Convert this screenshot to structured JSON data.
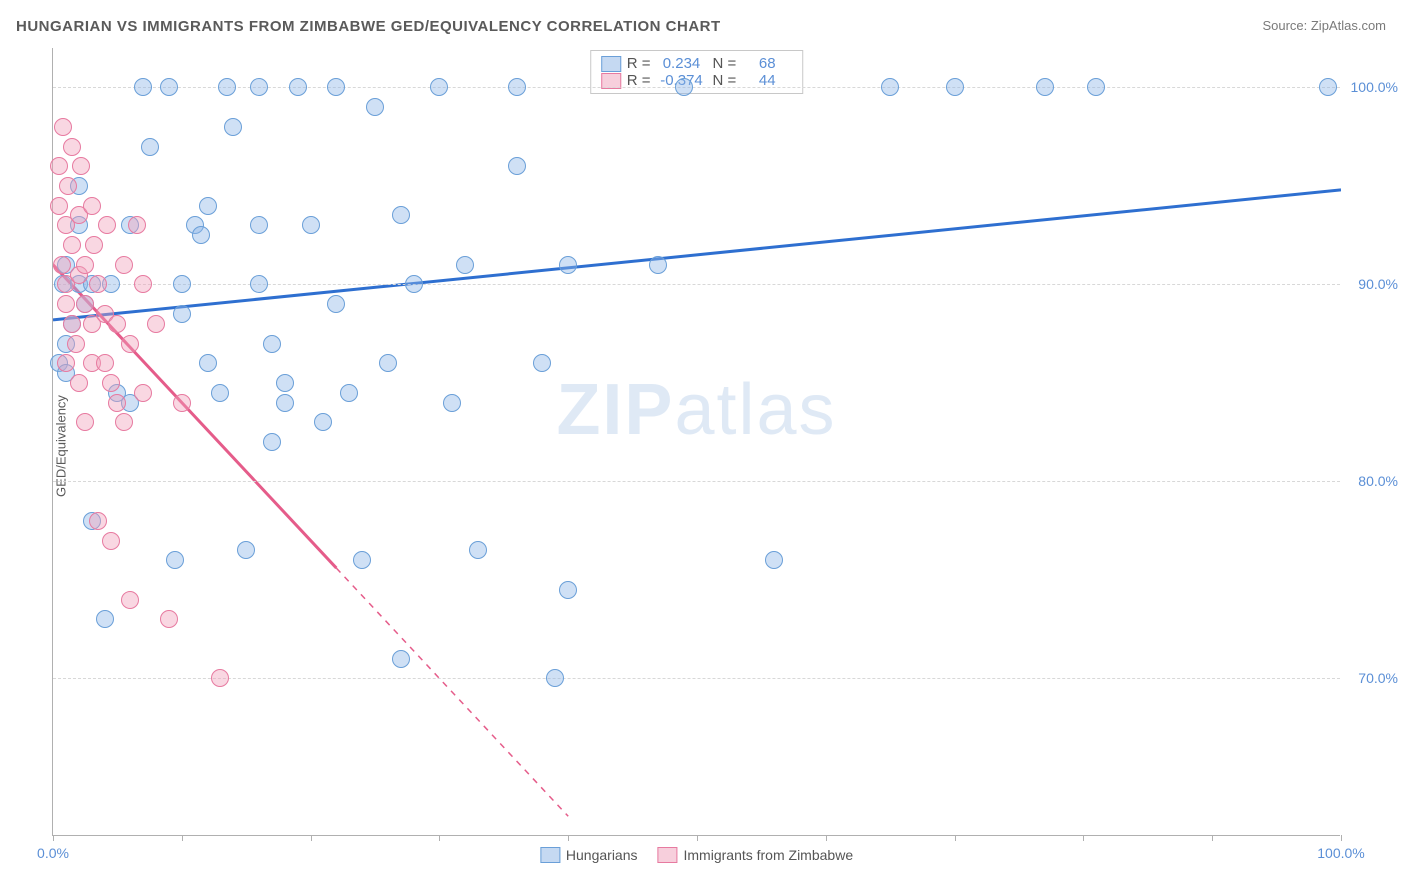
{
  "title": "HUNGARIAN VS IMMIGRANTS FROM ZIMBABWE GED/EQUIVALENCY CORRELATION CHART",
  "source": "Source: ZipAtlas.com",
  "ylabel": "GED/Equivalency",
  "watermark_bold": "ZIP",
  "watermark_light": "atlas",
  "chart": {
    "type": "scatter",
    "xlim": [
      0,
      100
    ],
    "ylim": [
      62,
      102
    ],
    "x_ticks": [
      0,
      10,
      20,
      30,
      40,
      50,
      60,
      70,
      80,
      90,
      100
    ],
    "x_tick_labels": {
      "0": "0.0%",
      "100": "100.0%"
    },
    "y_gridlines": [
      70,
      80,
      90,
      100
    ],
    "y_tick_labels": {
      "70": "70.0%",
      "80": "80.0%",
      "90": "90.0%",
      "100": "100.0%"
    },
    "grid_color": "#d8d8d8",
    "axis_color": "#b0b0b0",
    "tick_label_color": "#5b8fd6",
    "tick_fontsize": 14,
    "background_color": "#ffffff",
    "marker_size": 18,
    "series": [
      {
        "name": "Hungarians",
        "color_fill": "rgba(140,180,230,0.42)",
        "color_stroke": "#6a9fd8",
        "R": "0.234",
        "N": "68",
        "trend": {
          "x1": 0,
          "y1": 88.2,
          "x2": 100,
          "y2": 94.8,
          "color": "#2e6fd0",
          "width": 3,
          "dash": "none"
        },
        "points": [
          [
            0.5,
            86
          ],
          [
            0.8,
            90
          ],
          [
            1,
            91
          ],
          [
            1,
            85.5
          ],
          [
            1,
            87
          ],
          [
            1.5,
            88
          ],
          [
            2,
            95
          ],
          [
            2,
            93
          ],
          [
            2,
            90
          ],
          [
            2.5,
            89
          ],
          [
            3,
            78
          ],
          [
            3,
            90
          ],
          [
            4,
            73
          ],
          [
            4.5,
            90
          ],
          [
            5,
            84.5
          ],
          [
            6,
            93
          ],
          [
            6,
            84
          ],
          [
            7,
            100
          ],
          [
            7.5,
            97
          ],
          [
            9,
            100
          ],
          [
            9.5,
            76
          ],
          [
            10,
            90
          ],
          [
            10,
            88.5
          ],
          [
            11,
            93
          ],
          [
            11.5,
            92.5
          ],
          [
            12,
            94
          ],
          [
            12,
            86
          ],
          [
            13,
            84.5
          ],
          [
            13.5,
            100
          ],
          [
            14,
            98
          ],
          [
            16,
            93
          ],
          [
            16,
            100
          ],
          [
            16,
            90
          ],
          [
            17,
            87
          ],
          [
            17,
            82
          ],
          [
            18,
            84
          ],
          [
            18,
            85
          ],
          [
            19,
            100
          ],
          [
            20,
            93
          ],
          [
            21,
            83
          ],
          [
            22,
            100
          ],
          [
            22,
            89
          ],
          [
            24,
            76
          ],
          [
            25,
            99
          ],
          [
            26,
            86
          ],
          [
            27,
            71
          ],
          [
            27,
            93.5
          ],
          [
            28,
            90
          ],
          [
            30,
            100
          ],
          [
            31,
            84
          ],
          [
            32,
            91
          ],
          [
            33,
            76.5
          ],
          [
            36,
            100
          ],
          [
            36,
            96
          ],
          [
            38,
            86
          ],
          [
            39,
            70
          ],
          [
            40,
            91
          ],
          [
            40,
            74.5
          ],
          [
            47,
            91
          ],
          [
            49,
            100
          ],
          [
            56,
            76
          ],
          [
            65,
            100
          ],
          [
            70,
            100
          ],
          [
            77,
            100
          ],
          [
            81,
            100
          ],
          [
            99,
            100
          ],
          [
            23,
            84.5
          ],
          [
            15,
            76.5
          ]
        ]
      },
      {
        "name": "Immigrants from Zimbabwe",
        "color_fill": "rgba(240,160,185,0.42)",
        "color_stroke": "#e77aa0",
        "R": "-0.374",
        "N": "44",
        "trend": {
          "x1": 0,
          "y1": 91,
          "x2": 40,
          "y2": 63,
          "color": "#e55c8a",
          "width": 3,
          "dash_from_x": 22
        },
        "points": [
          [
            0.5,
            96
          ],
          [
            0.5,
            94
          ],
          [
            0.7,
            91
          ],
          [
            0.8,
            98
          ],
          [
            1,
            93
          ],
          [
            1,
            90
          ],
          [
            1,
            89
          ],
          [
            1,
            86
          ],
          [
            1.2,
            95
          ],
          [
            1.5,
            88
          ],
          [
            1.5,
            92
          ],
          [
            1.5,
            97
          ],
          [
            1.8,
            87
          ],
          [
            2,
            90.5
          ],
          [
            2,
            93.5
          ],
          [
            2,
            85
          ],
          [
            2.2,
            96
          ],
          [
            2.5,
            89
          ],
          [
            2.5,
            91
          ],
          [
            2.5,
            83
          ],
          [
            3,
            94
          ],
          [
            3,
            88
          ],
          [
            3,
            86
          ],
          [
            3.2,
            92
          ],
          [
            3.5,
            90
          ],
          [
            3.5,
            78
          ],
          [
            4,
            88.5
          ],
          [
            4,
            86
          ],
          [
            4.2,
            93
          ],
          [
            4.5,
            85
          ],
          [
            4.5,
            77
          ],
          [
            5,
            88
          ],
          [
            5,
            84
          ],
          [
            5.5,
            91
          ],
          [
            5.5,
            83
          ],
          [
            6,
            87
          ],
          [
            6,
            74
          ],
          [
            6.5,
            93
          ],
          [
            7,
            84.5
          ],
          [
            7,
            90
          ],
          [
            8,
            88
          ],
          [
            9,
            73
          ],
          [
            10,
            84
          ],
          [
            13,
            70
          ]
        ]
      }
    ]
  },
  "legend_top": {
    "r_label": "R =",
    "n_label": "N ="
  },
  "legend_bottom": {
    "items": [
      "Hungarians",
      "Immigrants from Zimbabwe"
    ]
  }
}
